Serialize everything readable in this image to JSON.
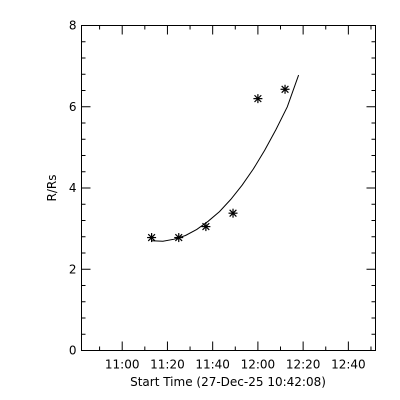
{
  "chart_data": {
    "type": "scatter",
    "xlabel": "Start Time (27-Dec-25 10:42:08)",
    "ylabel": "R/Rs",
    "xlim": [
      "10:42",
      "12:52"
    ],
    "ylim": [
      0,
      8
    ],
    "x_ticks": [
      "11:00",
      "11:20",
      "11:40",
      "12:00",
      "12:20",
      "12:40"
    ],
    "y_ticks": [
      "0",
      "2",
      "4",
      "6",
      "8"
    ],
    "grid": false,
    "legend": "none",
    "points": [
      {
        "x": "11:13",
        "y": 2.78
      },
      {
        "x": "11:25",
        "y": 2.78
      },
      {
        "x": "11:37",
        "y": 3.05
      },
      {
        "x": "11:49",
        "y": 3.38
      },
      {
        "x": "12:00",
        "y": 6.2
      },
      {
        "x": "12:12",
        "y": 6.43
      }
    ],
    "fit_curve": [
      {
        "x": "11:13",
        "y": 2.7
      },
      {
        "x": "11:18",
        "y": 2.69
      },
      {
        "x": "11:23",
        "y": 2.74
      },
      {
        "x": "11:28",
        "y": 2.83
      },
      {
        "x": "11:33",
        "y": 2.98
      },
      {
        "x": "11:38",
        "y": 3.18
      },
      {
        "x": "11:43",
        "y": 3.42
      },
      {
        "x": "11:48",
        "y": 3.72
      },
      {
        "x": "11:53",
        "y": 4.07
      },
      {
        "x": "11:58",
        "y": 4.47
      },
      {
        "x": "12:03",
        "y": 4.93
      },
      {
        "x": "12:08",
        "y": 5.44
      },
      {
        "x": "12:13",
        "y": 6.0
      },
      {
        "x": "12:18",
        "y": 6.78
      }
    ],
    "marker": "asterisk",
    "line_color": "#000000"
  }
}
